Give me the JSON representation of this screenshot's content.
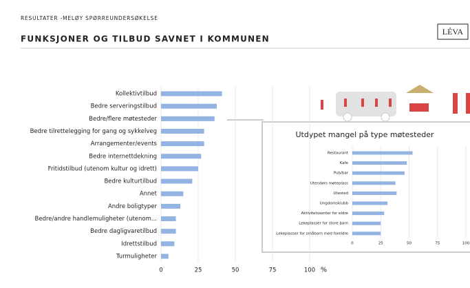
{
  "header": {
    "supertitle": "RESULTATER -MELØY SPØRREUNDERSØKELSE",
    "logo": "LÉVA"
  },
  "chart_data": [
    {
      "type": "hbar",
      "title": "FUNKSJONER OG TILBUD SAVNET I KOMMUNEN",
      "xlabel": "%",
      "color": "#93b3e3",
      "categories": [
        "Kollektivtilbud",
        "Bedre serveringstilbud",
        "Bedre/flere møtesteder",
        "Bedre tilrettelegging for gang og sykkelveg",
        "Arrangementer/events",
        "Bedre internettdekning",
        "Fritidstilbud (utenom kultur og idrett)",
        "Bedre kulturtilbud",
        "Annet",
        "Andre boligtyper",
        "Bedre/andre handlemuligheter (utenom...",
        "Bedre dagligvaretilbud",
        "Idrettstilbud",
        "Turmuligheter"
      ],
      "values": [
        41,
        37.5,
        36,
        29,
        29,
        27,
        25,
        21,
        15,
        13,
        10,
        10,
        9,
        5
      ],
      "xlim": [
        0,
        100
      ],
      "xticks": [
        0,
        25,
        50,
        75,
        100
      ],
      "grid": true
    },
    {
      "type": "hbar",
      "title": "Utdypet mangel på type møtesteder",
      "color": "#93b3e3",
      "categories": [
        "Restaurant",
        "Kafe",
        "Pub/bar",
        "Utendørs møteplass",
        "Utested",
        "Ungdomsklubb",
        "Aktivitetssenter for eldre",
        "Lekeplasser for store barn",
        "Lekeplasser for småbarn med foreldre"
      ],
      "values": [
        53,
        48,
        46,
        38,
        39,
        31,
        28,
        25,
        25
      ],
      "xlim": [
        0,
        100
      ],
      "xticks": [
        0,
        25,
        50,
        75,
        100
      ],
      "grid": true
    }
  ]
}
